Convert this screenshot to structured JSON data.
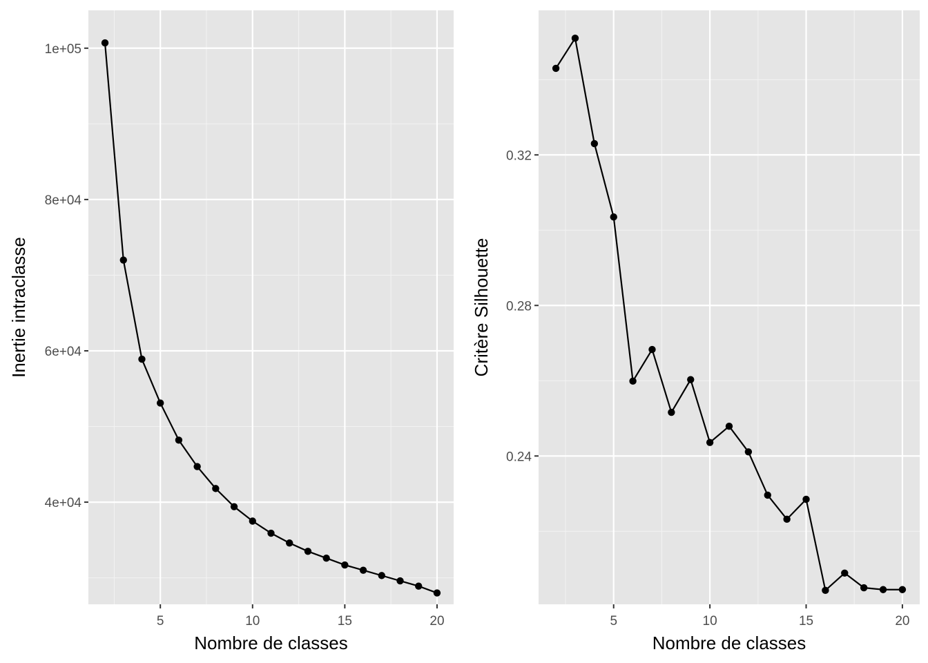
{
  "chart_data": [
    {
      "type": "line",
      "xlabel": "Nombre de classes",
      "ylabel": "Inertie intraclasse",
      "xlim": [
        1.1,
        20.9
      ],
      "ylim": [
        26500,
        105000
      ],
      "x_ticks": [
        5,
        10,
        15,
        20
      ],
      "x_tick_labels": [
        "5",
        "10",
        "15",
        "20"
      ],
      "x_minor_ticks": [
        2.5,
        7.5,
        12.5,
        17.5
      ],
      "y_ticks": [
        40000,
        60000,
        80000,
        100000
      ],
      "y_tick_labels": [
        "4e+04",
        "6e+04",
        "8e+04",
        "1e+05"
      ],
      "y_minor_ticks": [
        30000,
        50000,
        70000,
        90000
      ],
      "grid": true,
      "x": [
        2,
        3,
        4,
        5,
        6,
        7,
        8,
        9,
        10,
        11,
        12,
        13,
        14,
        15,
        16,
        17,
        18,
        19,
        20
      ],
      "y": [
        100700,
        72000,
        58900,
        53100,
        48200,
        44700,
        41800,
        39400,
        37500,
        35900,
        34600,
        33500,
        32600,
        31700,
        31000,
        30300,
        29600,
        28900,
        28000
      ]
    },
    {
      "type": "line",
      "xlabel": "Nombre de classes",
      "ylabel": "Critère Silhouette",
      "xlim": [
        1.1,
        20.9
      ],
      "ylim": [
        0.2006,
        0.3584
      ],
      "x_ticks": [
        5,
        10,
        15,
        20
      ],
      "x_tick_labels": [
        "5",
        "10",
        "15",
        "20"
      ],
      "x_minor_ticks": [
        2.5,
        7.5,
        12.5,
        17.5
      ],
      "y_ticks": [
        0.24,
        0.28,
        0.32
      ],
      "y_tick_labels": [
        "0.24",
        "0.28",
        "0.32"
      ],
      "y_minor_ticks": [
        0.22,
        0.26,
        0.3,
        0.34
      ],
      "grid": true,
      "x": [
        2,
        3,
        4,
        5,
        6,
        7,
        8,
        9,
        10,
        11,
        12,
        13,
        14,
        15,
        16,
        17,
        18,
        19,
        20
      ],
      "y": [
        0.343,
        0.351,
        0.323,
        0.3035,
        0.2599,
        0.2683,
        0.2516,
        0.2603,
        0.2436,
        0.2479,
        0.2411,
        0.2296,
        0.2232,
        0.2285,
        0.2043,
        0.2089,
        0.205,
        0.2045,
        0.2045
      ]
    }
  ]
}
